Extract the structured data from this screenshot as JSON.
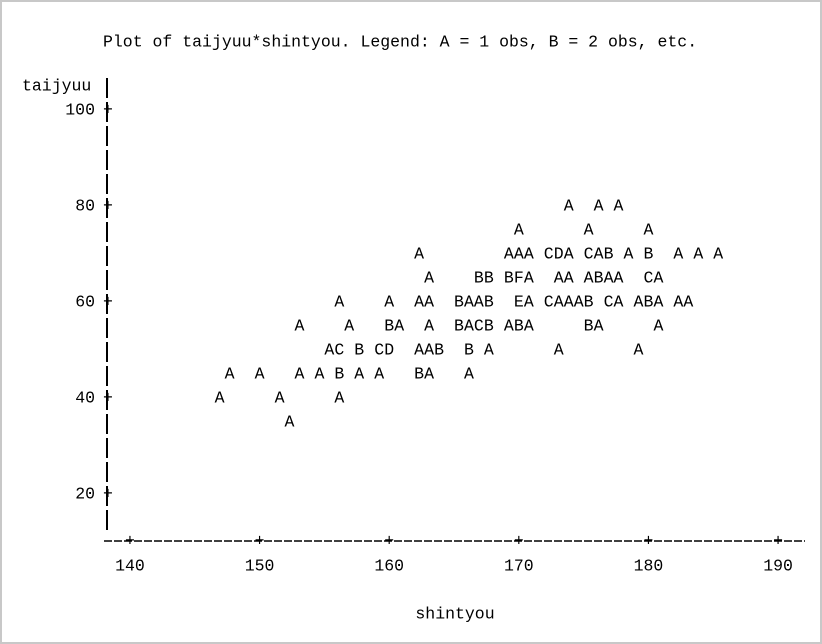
{
  "chart_data": {
    "type": "scatter",
    "title": "Plot of taijyuu*shintyou.  Legend: A = 1 obs, B = 2 obs, etc.",
    "x_label": "shintyou",
    "y_label": "taijyuu",
    "xlim": [
      138,
      192
    ],
    "ylim": [
      10,
      105
    ],
    "xticks": [
      140,
      150,
      160,
      170,
      180,
      190
    ],
    "yticks": [
      20,
      40,
      60,
      80,
      100
    ],
    "x": [
      173.85,
      176.15,
      177.69,
      170,
      175.38,
      180,
      162.31,
      169.23,
      170,
      170.77,
      172.31,
      173.08,
      173.85,
      175.38,
      176.15,
      176.92,
      178.46,
      180,
      182.31,
      183.85,
      185.38,
      163.08,
      166.92,
      167.69,
      169.23,
      170,
      170.77,
      173.08,
      173.85,
      175.38,
      176.15,
      176.92,
      177.69,
      180,
      180.77,
      156.15,
      160,
      162.31,
      163.08,
      165.38,
      166.15,
      166.92,
      167.69,
      170,
      170.77,
      172.31,
      173.08,
      173.85,
      174.62,
      175.38,
      176.92,
      177.69,
      179.23,
      180,
      180.77,
      182.31,
      183.08,
      153.08,
      156.92,
      160,
      160.77,
      163.08,
      165.38,
      166.15,
      166.92,
      167.69,
      169.23,
      170,
      170.77,
      175.38,
      176.15,
      180.77,
      155.38,
      156.15,
      157.69,
      159.23,
      160,
      162.31,
      163.08,
      163.85,
      166.15,
      167.69,
      173.08,
      179.23,
      147.69,
      150,
      153.08,
      154.62,
      156.15,
      157.69,
      159.23,
      162.31,
      163.08,
      166.15,
      146.92,
      151.54,
      156.15,
      152.31
    ],
    "values": [
      80,
      80,
      80,
      75,
      75,
      75,
      70,
      70,
      70,
      70,
      70,
      70,
      70,
      70,
      70,
      70,
      70,
      70,
      70,
      70,
      70,
      65,
      65,
      65,
      65,
      65,
      65,
      65,
      65,
      65,
      65,
      65,
      65,
      65,
      65,
      60,
      60,
      60,
      60,
      60,
      60,
      60,
      60,
      60,
      60,
      60,
      60,
      60,
      60,
      60,
      60,
      60,
      60,
      60,
      60,
      60,
      60,
      55,
      55,
      55,
      55,
      55,
      55,
      55,
      55,
      55,
      55,
      55,
      55,
      55,
      55,
      55,
      50,
      50,
      50,
      50,
      50,
      50,
      50,
      50,
      50,
      50,
      50,
      50,
      45,
      45,
      45,
      45,
      45,
      45,
      45,
      45,
      45,
      45,
      40,
      40,
      40,
      35
    ],
    "markers": [
      "A",
      "A",
      "A",
      "A",
      "A",
      "A",
      "A",
      "A",
      "A",
      "A",
      "C",
      "D",
      "A",
      "C",
      "A",
      "B",
      "A",
      "B",
      "A",
      "A",
      "A",
      "A",
      "B",
      "B",
      "B",
      "F",
      "A",
      "A",
      "A",
      "A",
      "B",
      "A",
      "A",
      "C",
      "A",
      "A",
      "A",
      "A",
      "A",
      "B",
      "A",
      "A",
      "B",
      "E",
      "A",
      "C",
      "A",
      "A",
      "A",
      "B",
      "C",
      "A",
      "A",
      "B",
      "A",
      "A",
      "A",
      "A",
      "A",
      "B",
      "A",
      "A",
      "B",
      "A",
      "C",
      "B",
      "A",
      "B",
      "A",
      "B",
      "A",
      "A",
      "A",
      "C",
      "B",
      "C",
      "D",
      "A",
      "A",
      "B",
      "B",
      "A",
      "A",
      "A",
      "A",
      "A",
      "A",
      "A",
      "B",
      "A",
      "A",
      "B",
      "A",
      "A",
      "A",
      "A",
      "A",
      "A"
    ],
    "color": "#000000"
  }
}
